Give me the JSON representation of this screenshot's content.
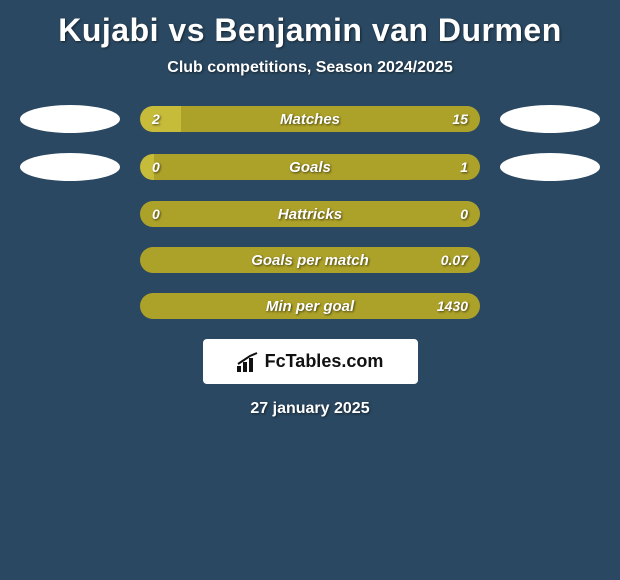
{
  "title": "Kujabi vs Benjamin van Durmen",
  "subtitle": "Club competitions, Season 2024/2025",
  "date": "27 january 2025",
  "logo_text": "FcTables.com",
  "colors": {
    "background": "#2a4861",
    "left_bar": "#ada229",
    "right_bar": "#ada229",
    "left_light": "#c7bb3a",
    "right_light": "#c7bb3a",
    "text": "#ffffff"
  },
  "stats": [
    {
      "label": "Matches",
      "left_value": "2",
      "right_value": "15",
      "left_pct": 12,
      "right_pct": 88,
      "show_left_oval": true,
      "show_right_oval": true,
      "left_color": "#c7bb3a",
      "right_color": "#ada229"
    },
    {
      "label": "Goals",
      "left_value": "0",
      "right_value": "1",
      "left_pct": 4,
      "right_pct": 96,
      "show_left_oval": true,
      "show_right_oval": true,
      "left_color": "#c7bb3a",
      "right_color": "#ada229"
    },
    {
      "label": "Hattricks",
      "left_value": "0",
      "right_value": "0",
      "left_pct": 50,
      "right_pct": 50,
      "show_left_oval": false,
      "show_right_oval": false,
      "left_color": "#ada229",
      "right_color": "#ada229"
    },
    {
      "label": "Goals per match",
      "left_value": "",
      "right_value": "0.07",
      "left_pct": 0,
      "right_pct": 100,
      "show_left_oval": false,
      "show_right_oval": false,
      "left_color": "#ada229",
      "right_color": "#ada229"
    },
    {
      "label": "Min per goal",
      "left_value": "",
      "right_value": "1430",
      "left_pct": 0,
      "right_pct": 100,
      "show_left_oval": false,
      "show_right_oval": false,
      "left_color": "#ada229",
      "right_color": "#ada229"
    }
  ]
}
